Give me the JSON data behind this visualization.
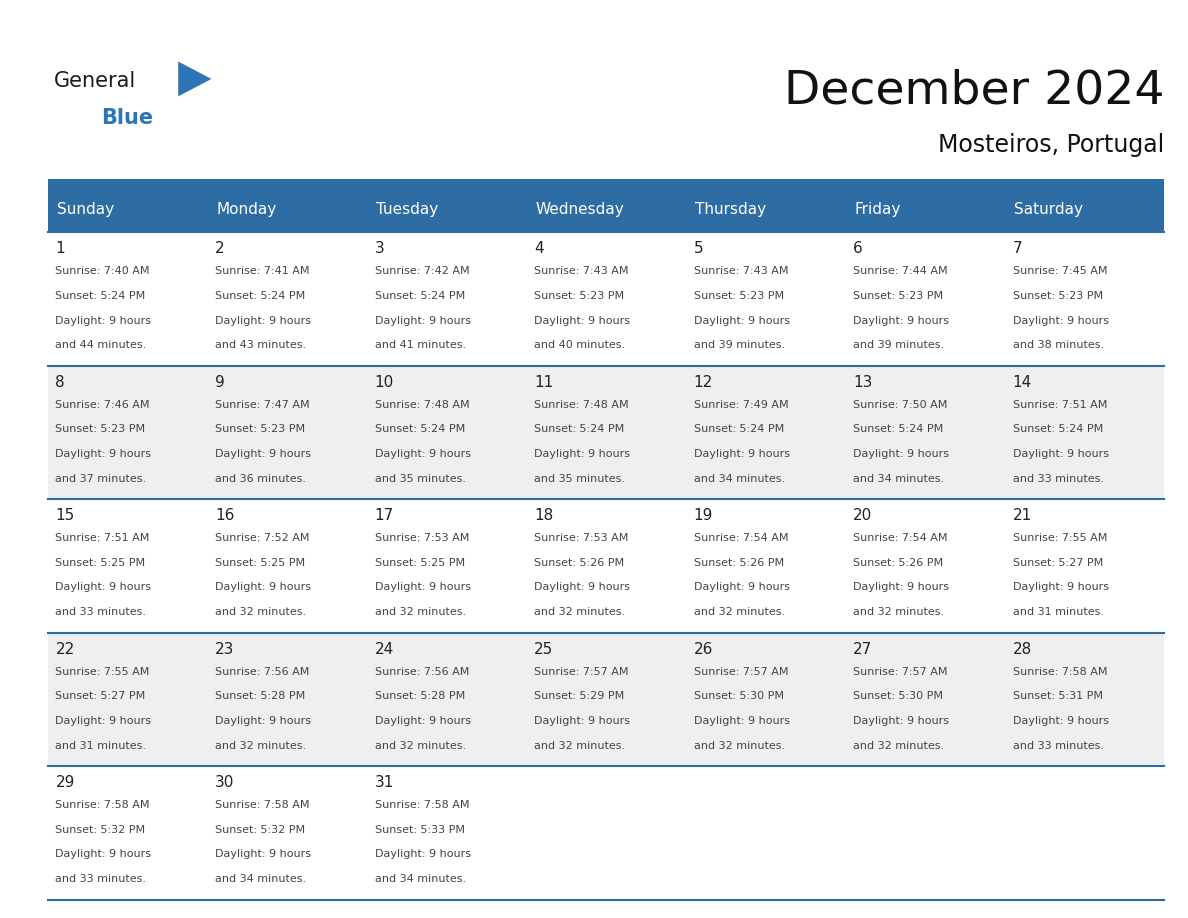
{
  "title": "December 2024",
  "subtitle": "Mosteiros, Portugal",
  "header_bg": "#2E6DA4",
  "header_text_color": "#FFFFFF",
  "day_names": [
    "Sunday",
    "Monday",
    "Tuesday",
    "Wednesday",
    "Thursday",
    "Friday",
    "Saturday"
  ],
  "bg_color": "#FFFFFF",
  "cell_bg_even": "#EFEFEF",
  "cell_bg_odd": "#FFFFFF",
  "border_color": "#2E6DA4",
  "day_num_color": "#222222",
  "text_color": "#444444",
  "title_color": "#111111",
  "weeks": [
    [
      {
        "day": 1,
        "sunrise": "7:40 AM",
        "sunset": "5:24 PM",
        "daylight": "9 hours and 44 minutes."
      },
      {
        "day": 2,
        "sunrise": "7:41 AM",
        "sunset": "5:24 PM",
        "daylight": "9 hours and 43 minutes."
      },
      {
        "day": 3,
        "sunrise": "7:42 AM",
        "sunset": "5:24 PM",
        "daylight": "9 hours and 41 minutes."
      },
      {
        "day": 4,
        "sunrise": "7:43 AM",
        "sunset": "5:23 PM",
        "daylight": "9 hours and 40 minutes."
      },
      {
        "day": 5,
        "sunrise": "7:43 AM",
        "sunset": "5:23 PM",
        "daylight": "9 hours and 39 minutes."
      },
      {
        "day": 6,
        "sunrise": "7:44 AM",
        "sunset": "5:23 PM",
        "daylight": "9 hours and 39 minutes."
      },
      {
        "day": 7,
        "sunrise": "7:45 AM",
        "sunset": "5:23 PM",
        "daylight": "9 hours and 38 minutes."
      }
    ],
    [
      {
        "day": 8,
        "sunrise": "7:46 AM",
        "sunset": "5:23 PM",
        "daylight": "9 hours and 37 minutes."
      },
      {
        "day": 9,
        "sunrise": "7:47 AM",
        "sunset": "5:23 PM",
        "daylight": "9 hours and 36 minutes."
      },
      {
        "day": 10,
        "sunrise": "7:48 AM",
        "sunset": "5:24 PM",
        "daylight": "9 hours and 35 minutes."
      },
      {
        "day": 11,
        "sunrise": "7:48 AM",
        "sunset": "5:24 PM",
        "daylight": "9 hours and 35 minutes."
      },
      {
        "day": 12,
        "sunrise": "7:49 AM",
        "sunset": "5:24 PM",
        "daylight": "9 hours and 34 minutes."
      },
      {
        "day": 13,
        "sunrise": "7:50 AM",
        "sunset": "5:24 PM",
        "daylight": "9 hours and 34 minutes."
      },
      {
        "day": 14,
        "sunrise": "7:51 AM",
        "sunset": "5:24 PM",
        "daylight": "9 hours and 33 minutes."
      }
    ],
    [
      {
        "day": 15,
        "sunrise": "7:51 AM",
        "sunset": "5:25 PM",
        "daylight": "9 hours and 33 minutes."
      },
      {
        "day": 16,
        "sunrise": "7:52 AM",
        "sunset": "5:25 PM",
        "daylight": "9 hours and 32 minutes."
      },
      {
        "day": 17,
        "sunrise": "7:53 AM",
        "sunset": "5:25 PM",
        "daylight": "9 hours and 32 minutes."
      },
      {
        "day": 18,
        "sunrise": "7:53 AM",
        "sunset": "5:26 PM",
        "daylight": "9 hours and 32 minutes."
      },
      {
        "day": 19,
        "sunrise": "7:54 AM",
        "sunset": "5:26 PM",
        "daylight": "9 hours and 32 minutes."
      },
      {
        "day": 20,
        "sunrise": "7:54 AM",
        "sunset": "5:26 PM",
        "daylight": "9 hours and 32 minutes."
      },
      {
        "day": 21,
        "sunrise": "7:55 AM",
        "sunset": "5:27 PM",
        "daylight": "9 hours and 31 minutes."
      }
    ],
    [
      {
        "day": 22,
        "sunrise": "7:55 AM",
        "sunset": "5:27 PM",
        "daylight": "9 hours and 31 minutes."
      },
      {
        "day": 23,
        "sunrise": "7:56 AM",
        "sunset": "5:28 PM",
        "daylight": "9 hours and 32 minutes."
      },
      {
        "day": 24,
        "sunrise": "7:56 AM",
        "sunset": "5:28 PM",
        "daylight": "9 hours and 32 minutes."
      },
      {
        "day": 25,
        "sunrise": "7:57 AM",
        "sunset": "5:29 PM",
        "daylight": "9 hours and 32 minutes."
      },
      {
        "day": 26,
        "sunrise": "7:57 AM",
        "sunset": "5:30 PM",
        "daylight": "9 hours and 32 minutes."
      },
      {
        "day": 27,
        "sunrise": "7:57 AM",
        "sunset": "5:30 PM",
        "daylight": "9 hours and 32 minutes."
      },
      {
        "day": 28,
        "sunrise": "7:58 AM",
        "sunset": "5:31 PM",
        "daylight": "9 hours and 33 minutes."
      }
    ],
    [
      {
        "day": 29,
        "sunrise": "7:58 AM",
        "sunset": "5:32 PM",
        "daylight": "9 hours and 33 minutes."
      },
      {
        "day": 30,
        "sunrise": "7:58 AM",
        "sunset": "5:32 PM",
        "daylight": "9 hours and 34 minutes."
      },
      {
        "day": 31,
        "sunrise": "7:58 AM",
        "sunset": "5:33 PM",
        "daylight": "9 hours and 34 minutes."
      },
      null,
      null,
      null,
      null
    ]
  ],
  "generalblue_dark_color": "#1a1a1a",
  "generalblue_blue_color": "#2E75B6",
  "logo_general_size": 15,
  "logo_blue_size": 15,
  "title_fontsize": 34,
  "subtitle_fontsize": 17,
  "header_fontsize": 11,
  "daynum_fontsize": 11,
  "cell_fontsize": 8
}
